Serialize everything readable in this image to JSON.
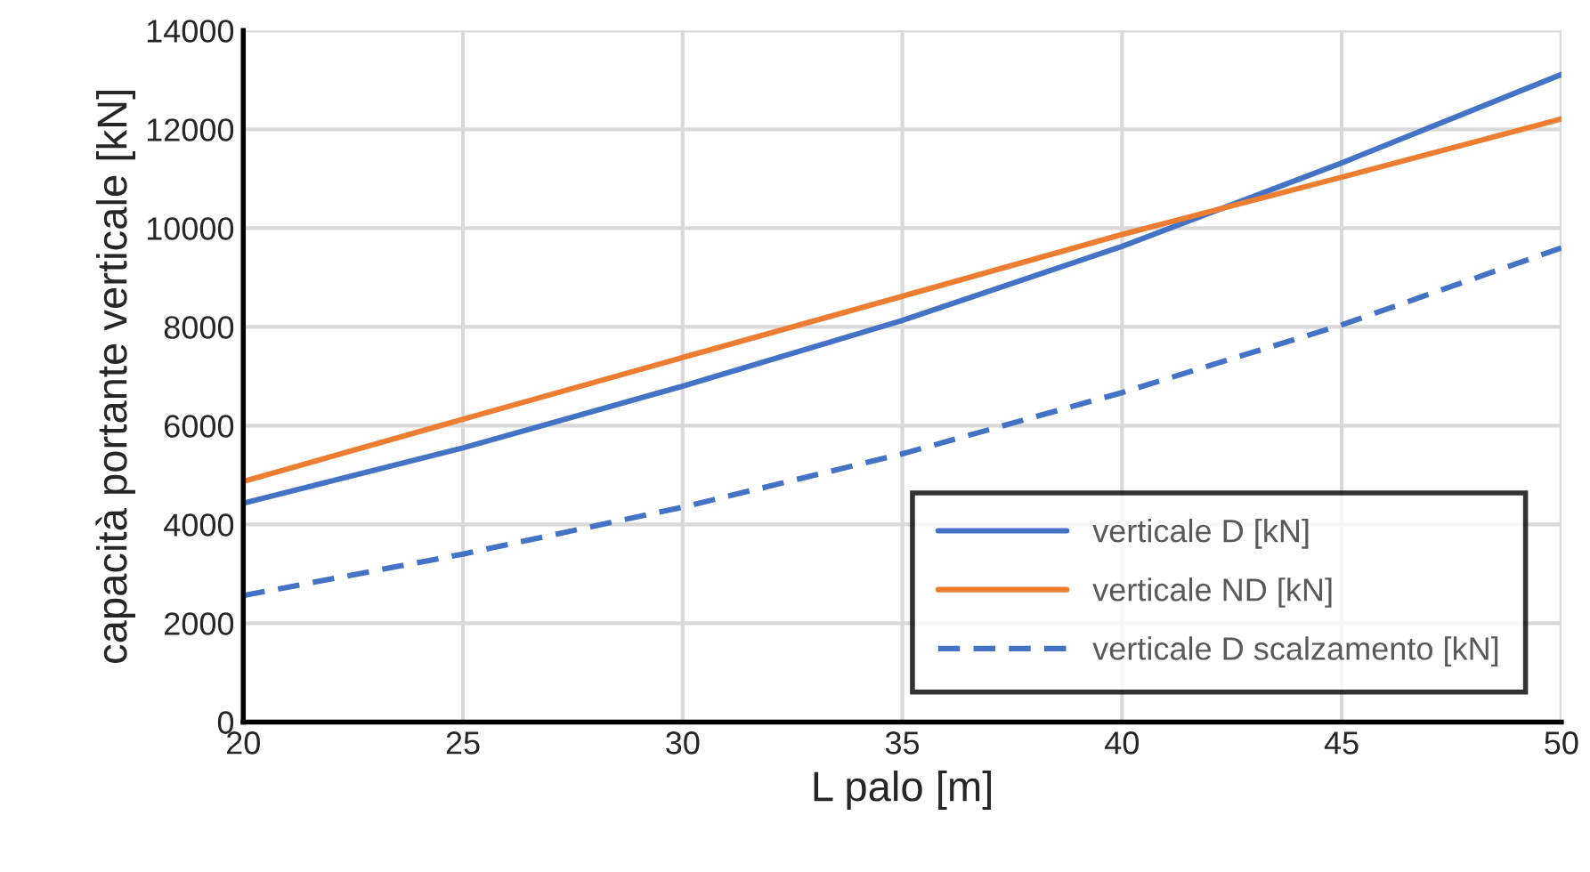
{
  "chart_data": {
    "type": "line",
    "xlabel": "L palo [m]",
    "ylabel": "capacità portante verticale [kN]",
    "x": [
      20,
      25,
      30,
      35,
      40,
      45,
      50
    ],
    "series": [
      {
        "name": "verticale D [kN]",
        "color": "#4472c4",
        "line_style": "solid",
        "values": [
          4430,
          5550,
          6800,
          8130,
          9630,
          11320,
          13110
        ]
      },
      {
        "name": "verticale ND [kN]",
        "color": "#ed7d31",
        "line_style": "solid",
        "values": [
          4870,
          6130,
          7380,
          8620,
          9870,
          11030,
          12210
        ]
      },
      {
        "name": "verticale D scalzamento [kN]",
        "color": "#4472c4",
        "line_style": "dashed",
        "values": [
          2560,
          3400,
          4350,
          5430,
          6670,
          8040,
          9600
        ]
      }
    ],
    "xlim": [
      20,
      50
    ],
    "xticks": [
      20,
      25,
      30,
      35,
      40,
      45,
      50
    ],
    "ylim": [
      0,
      14000
    ],
    "yticks": [
      0,
      2000,
      4000,
      6000,
      8000,
      10000,
      12000,
      14000
    ],
    "grid": true,
    "legend": "bottom right",
    "marker": "none"
  }
}
